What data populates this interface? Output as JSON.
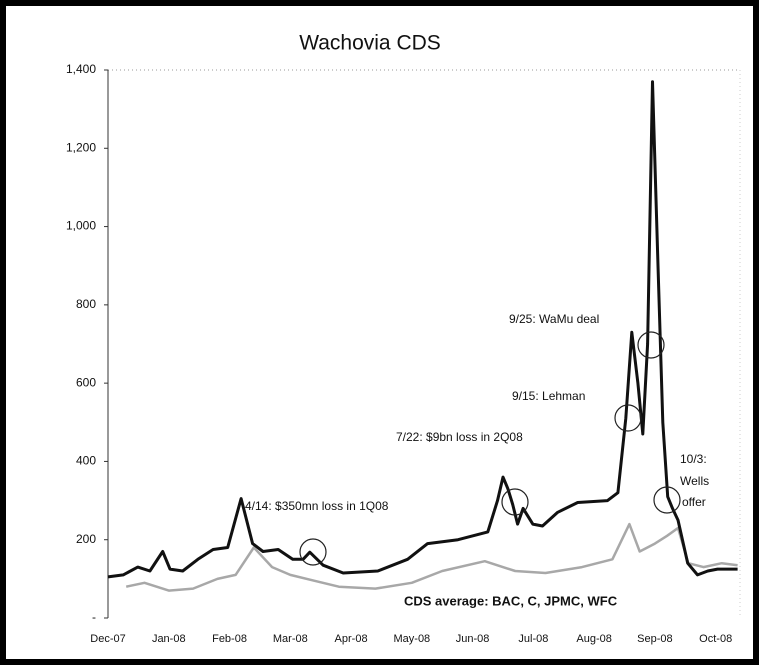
{
  "chart_data": {
    "type": "line",
    "title": "Wachovia CDS",
    "xlim": [
      0,
      10.4
    ],
    "xticks": [
      {
        "value": 0,
        "label": "Dec-07"
      },
      {
        "value": 1,
        "label": "Jan-08"
      },
      {
        "value": 2,
        "label": "Feb-08"
      },
      {
        "value": 3,
        "label": "Mar-08"
      },
      {
        "value": 4,
        "label": "Apr-08"
      },
      {
        "value": 5,
        "label": "May-08"
      },
      {
        "value": 6,
        "label": "Jun-08"
      },
      {
        "value": 7,
        "label": "Jul-08"
      },
      {
        "value": 8,
        "label": "Aug-08"
      },
      {
        "value": 9,
        "label": "Sep-08"
      },
      {
        "value": 10,
        "label": "Oct-08"
      }
    ],
    "ylim": [
      0,
      1400
    ],
    "yticks": [
      {
        "value": 0,
        "label": "-"
      },
      200,
      400,
      600,
      800,
      {
        "value": 1000,
        "label": "1,000"
      },
      {
        "value": 1200,
        "label": "1,200"
      },
      {
        "value": 1400,
        "label": "1,400"
      }
    ],
    "series": [
      {
        "color": "#111111",
        "x": [
          0,
          0.25,
          0.49,
          0.69,
          0.9,
          1.02,
          1.23,
          1.48,
          1.73,
          1.97,
          2.19,
          2.38,
          2.55,
          2.8,
          3.04,
          3.21,
          3.32,
          3.54,
          3.87,
          4.44,
          4.93,
          5.26,
          5.76,
          6.25,
          6.41,
          6.5,
          6.58,
          6.66,
          6.74,
          6.83,
          6.99,
          7.15,
          7.4,
          7.73,
          8.22,
          8.39,
          8.52,
          8.62,
          8.72,
          8.8,
          8.88,
          8.96,
          9.05,
          9.13,
          9.21,
          9.29,
          9.38,
          9.54,
          9.7,
          9.87,
          10.03,
          10.36
        ],
        "values": [
          105,
          110,
          130,
          120,
          170,
          125,
          120,
          150,
          175,
          180,
          305,
          190,
          170,
          175,
          150,
          150,
          168,
          135,
          115,
          120,
          150,
          190,
          200,
          220,
          300,
          360,
          330,
          290,
          240,
          280,
          240,
          235,
          270,
          295,
          300,
          320,
          510,
          730,
          600,
          470,
          700,
          1370,
          900,
          500,
          310,
          280,
          250,
          140,
          110,
          120,
          125,
          125
        ]
      },
      {
        "name": "CDS average: BAC, C, JPMC, WFC",
        "color": "#a8a8a8",
        "x": [
          0.3,
          0.6,
          1.0,
          1.4,
          1.8,
          2.1,
          2.4,
          2.7,
          3.0,
          3.4,
          3.8,
          4.4,
          5.0,
          5.5,
          6.2,
          6.7,
          7.2,
          7.8,
          8.3,
          8.58,
          8.75,
          9.0,
          9.2,
          9.38,
          9.55,
          9.8,
          10.1,
          10.36
        ],
        "values": [
          80,
          90,
          70,
          75,
          100,
          110,
          180,
          130,
          110,
          95,
          80,
          75,
          90,
          120,
          145,
          120,
          115,
          130,
          150,
          240,
          170,
          190,
          210,
          230,
          140,
          130,
          140,
          135
        ]
      }
    ],
    "annotations": [
      "4/14: $350mn loss in 1Q08",
      "7/22: $9bn loss in 2Q08",
      "9/15: Lehman",
      "9/25: WaMu deal",
      "10/3:",
      "Wells",
      "offer"
    ]
  }
}
